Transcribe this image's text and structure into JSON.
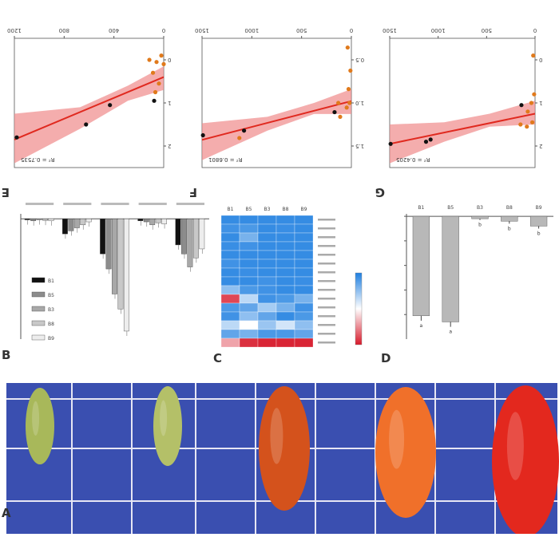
{
  "figure": {
    "panel_letters": [
      "A",
      "B",
      "C",
      "D",
      "E",
      "F",
      "G"
    ],
    "stage_labels": [
      "B1",
      "B5",
      "B3",
      "B8",
      "B9"
    ]
  },
  "colors": {
    "fit_line": "#e0291f",
    "ci_band": "#f08a8a",
    "point_orange": "#e07a1c",
    "point_black": "#111111",
    "heatmap_high": "#1e7fe0",
    "heatmap_mid": "#ffffff",
    "heatmap_low": "#d7192a",
    "photo_background": "#3a4fb0",
    "bar_gray": "#b8b8b8"
  },
  "chart_data": [
    {
      "id": "E",
      "type": "scatter",
      "title": "",
      "annotation": "R² = 0.7535",
      "x_ticks": [
        "0",
        "400",
        "800",
        "1200"
      ],
      "y_ticks": [
        "0",
        "1",
        "2"
      ],
      "xlim": [
        0,
        1250
      ],
      "ylim": [
        -0.5,
        2.5
      ],
      "points": [
        {
          "x": 0,
          "y": 0.1,
          "c": "orange"
        },
        {
          "x": 20,
          "y": -0.1,
          "c": "orange"
        },
        {
          "x": 60,
          "y": 0.05,
          "c": "orange"
        },
        {
          "x": 90,
          "y": 0.3,
          "c": "orange"
        },
        {
          "x": 40,
          "y": 0.55,
          "c": "orange"
        },
        {
          "x": 70,
          "y": 0.75,
          "c": "orange"
        },
        {
          "x": 80,
          "y": 0.95,
          "c": "black"
        },
        {
          "x": 120,
          "y": 0.0,
          "c": "orange"
        },
        {
          "x": 450,
          "y": 1.05,
          "c": "black"
        },
        {
          "x": 650,
          "y": 1.5,
          "c": "black"
        },
        {
          "x": 1230,
          "y": 1.8,
          "c": "black"
        }
      ],
      "fit": [
        [
          0,
          0.4
        ],
        [
          1250,
          1.85
        ]
      ],
      "band_low": [
        [
          0,
          0.15
        ],
        [
          300,
          0.6
        ],
        [
          700,
          1.1
        ],
        [
          1250,
          1.25
        ]
      ],
      "band_high": [
        [
          0,
          0.7
        ],
        [
          300,
          0.95
        ],
        [
          700,
          1.6
        ],
        [
          1250,
          2.4
        ]
      ]
    },
    {
      "id": "F",
      "type": "scatter",
      "title": "",
      "annotation": "R² = 0.6801",
      "x_ticks": [
        "0",
        "500",
        "1000",
        "1500"
      ],
      "y_ticks": [
        "0.5",
        "1.0",
        "1.5"
      ],
      "xlim": [
        0,
        1600
      ],
      "ylim": [
        0.3,
        1.7
      ],
      "points": [
        {
          "x": 10,
          "y": 0.65,
          "c": "orange"
        },
        {
          "x": 30,
          "y": 0.85,
          "c": "orange"
        },
        {
          "x": 20,
          "y": 1.0,
          "c": "orange"
        },
        {
          "x": 50,
          "y": 1.05,
          "c": "orange"
        },
        {
          "x": 120,
          "y": 1.15,
          "c": "orange"
        },
        {
          "x": 140,
          "y": 1.0,
          "c": "orange"
        },
        {
          "x": 180,
          "y": 1.1,
          "c": "black"
        },
        {
          "x": 40,
          "y": 0.4,
          "c": "orange"
        },
        {
          "x": 1150,
          "y": 1.3,
          "c": "black"
        },
        {
          "x": 1200,
          "y": 1.38,
          "c": "orange"
        },
        {
          "x": 1590,
          "y": 1.35,
          "c": "black"
        }
      ],
      "fit": [
        [
          0,
          0.98
        ],
        [
          1600,
          1.4
        ]
      ],
      "band_low": [
        [
          0,
          0.85
        ],
        [
          400,
          1.0
        ],
        [
          900,
          1.15
        ],
        [
          1600,
          1.22
        ]
      ],
      "band_high": [
        [
          0,
          1.12
        ],
        [
          400,
          1.12
        ],
        [
          900,
          1.3
        ],
        [
          1600,
          1.62
        ]
      ]
    },
    {
      "id": "G",
      "type": "scatter",
      "title": "",
      "annotation": "R² = 0.4205",
      "x_ticks": [
        "0",
        "500",
        "1000",
        "1500"
      ],
      "y_ticks": [
        "0",
        "1",
        "2"
      ],
      "xlim": [
        0,
        1600
      ],
      "ylim": [
        -0.5,
        2.5
      ],
      "points": [
        {
          "x": 20,
          "y": -0.1,
          "c": "orange"
        },
        {
          "x": 10,
          "y": 0.8,
          "c": "orange"
        },
        {
          "x": 40,
          "y": 1.0,
          "c": "orange"
        },
        {
          "x": 80,
          "y": 1.2,
          "c": "orange"
        },
        {
          "x": 150,
          "y": 1.05,
          "c": "black"
        },
        {
          "x": 30,
          "y": 1.45,
          "c": "orange"
        },
        {
          "x": 90,
          "y": 1.55,
          "c": "orange"
        },
        {
          "x": 160,
          "y": 1.5,
          "c": "orange"
        },
        {
          "x": 1150,
          "y": 1.85,
          "c": "black"
        },
        {
          "x": 1200,
          "y": 1.9,
          "c": "black"
        },
        {
          "x": 1590,
          "y": 1.95,
          "c": "black"
        }
      ],
      "fit": [
        [
          0,
          1.25
        ],
        [
          1600,
          1.95
        ]
      ],
      "band_low": [
        [
          0,
          0.95
        ],
        [
          500,
          1.25
        ],
        [
          1000,
          1.45
        ],
        [
          1600,
          1.5
        ]
      ],
      "band_high": [
        [
          0,
          1.5
        ],
        [
          500,
          1.55
        ],
        [
          1000,
          1.9
        ],
        [
          1600,
          2.4
        ]
      ]
    },
    {
      "id": "B",
      "type": "bar",
      "title": "",
      "ylabel": "",
      "group_labels": [
        "",
        "",
        "",
        "",
        ""
      ],
      "legend": [
        "B1",
        "B5",
        "B3",
        "B8",
        "B9"
      ],
      "series_colors": [
        "#111111",
        "#8c8c8c",
        "#a8a8a8",
        "#c8c8c8",
        "#ededed"
      ],
      "ylim": [
        -12,
        0.5
      ],
      "groups": [
        {
          "values": [
            -0.1,
            -0.2,
            -0.1,
            -0.15,
            -0.2
          ]
        },
        {
          "values": [
            -1.5,
            -1.2,
            -0.9,
            -0.6,
            -0.3
          ]
        },
        {
          "values": [
            -3.5,
            -5.0,
            -7.5,
            -9.0,
            -11.2
          ]
        },
        {
          "values": [
            -0.2,
            -0.3,
            -0.6,
            -0.4,
            -0.5
          ]
        },
        {
          "values": [
            -2.6,
            -3.5,
            -4.8,
            -3.9,
            -3.0
          ]
        }
      ]
    },
    {
      "id": "C",
      "type": "heatmap",
      "title": "",
      "columns": [
        "B1",
        "B5",
        "B3",
        "B8",
        "B9"
      ],
      "rows": [
        "",
        "",
        "",
        "",
        "",
        "",
        "",
        "",
        "",
        "",
        "",
        "",
        "",
        "",
        ""
      ],
      "colorbar_ticks": [
        "",
        "",
        "",
        "",
        "",
        ""
      ],
      "values": [
        [
          0.9,
          0.9,
          0.9,
          0.9,
          0.9
        ],
        [
          0.85,
          0.8,
          0.9,
          0.88,
          0.9
        ],
        [
          0.9,
          0.6,
          0.9,
          0.9,
          0.9
        ],
        [
          0.88,
          0.85,
          0.9,
          0.9,
          0.9
        ],
        [
          0.9,
          0.9,
          0.9,
          0.9,
          0.9
        ],
        [
          0.85,
          0.9,
          0.9,
          0.9,
          0.9
        ],
        [
          0.9,
          0.88,
          0.9,
          0.9,
          0.9
        ],
        [
          0.9,
          0.9,
          0.85,
          0.9,
          0.88
        ],
        [
          0.5,
          0.8,
          0.85,
          0.9,
          0.9
        ],
        [
          -0.8,
          0.3,
          0.85,
          0.8,
          0.6
        ],
        [
          0.8,
          0.7,
          0.4,
          0.6,
          0.85
        ],
        [
          0.85,
          0.5,
          0.7,
          0.9,
          0.8
        ],
        [
          0.3,
          0.0,
          0.45,
          0.2,
          0.5
        ],
        [
          0.7,
          0.6,
          0.8,
          0.8,
          0.7
        ],
        [
          -0.4,
          -0.9,
          -0.95,
          -0.95,
          -0.95
        ]
      ]
    },
    {
      "id": "D",
      "type": "bar",
      "title": "",
      "ylabel": "",
      "categories": [
        "B1",
        "B5",
        "B3",
        "B8",
        "B9"
      ],
      "ylim": [
        -100,
        2
      ],
      "values": [
        -81,
        -86,
        -2,
        -4,
        -8
      ],
      "errors": [
        4,
        4,
        1,
        2,
        2
      ],
      "sig": [
        "a",
        "a",
        "b",
        "b",
        "b"
      ],
      "y_ticks": [
        "0",
        "-20",
        "-40",
        "-60",
        "-80"
      ]
    }
  ]
}
